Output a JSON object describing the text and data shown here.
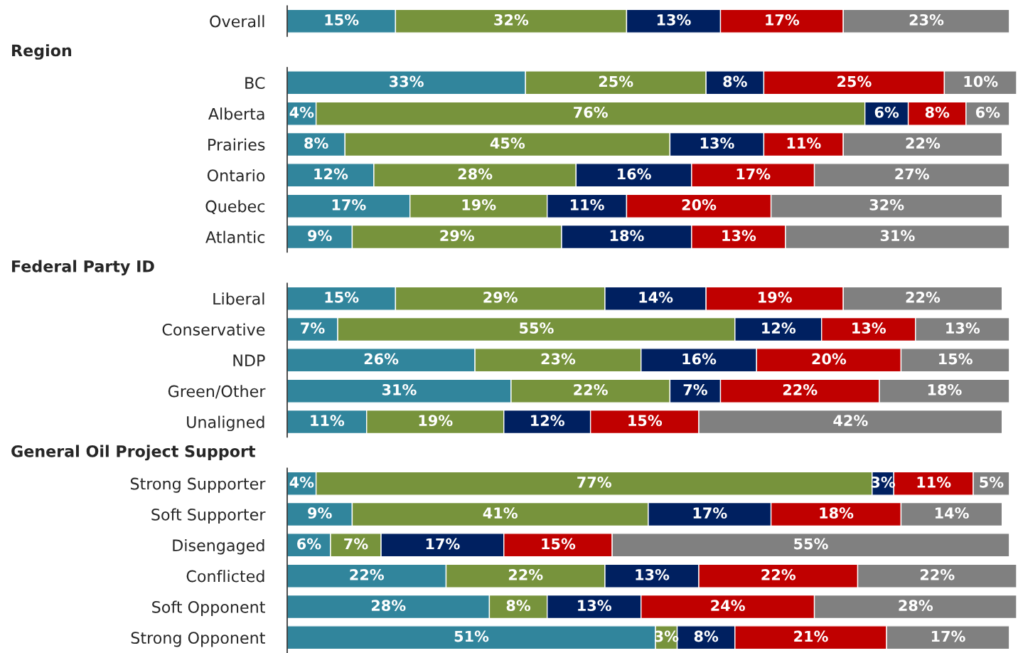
{
  "chart_data": {
    "type": "bar",
    "orientation": "horizontal",
    "stacked": true,
    "tick_labels": "y",
    "annotations": [
      "Region",
      "Federal Party ID",
      "General Oil Project Support"
    ],
    "categories": [
      "Overall",
      null,
      "BC",
      "Alberta",
      "Prairies",
      "Ontario",
      "Quebec",
      "Atlantic",
      null,
      "Liberal",
      "Conservative",
      "NDP",
      "Green/Other",
      "Unaligned",
      null,
      "Strong Supporter",
      "Soft Supporter",
      "Disengaged",
      "Conflicted",
      "Soft Opponent",
      "Strong Opponent"
    ],
    "series": [
      {
        "color": "#31859c",
        "values": [
          15,
          null,
          33,
          4,
          8,
          12,
          17,
          9,
          null,
          15,
          7,
          26,
          31,
          11,
          null,
          4,
          9,
          6,
          22,
          28,
          51
        ],
        "value_labels": [
          "15%",
          null,
          "33%",
          "4%",
          "8%",
          "12%",
          "17%",
          "9%",
          null,
          "15%",
          "7%",
          "26%",
          "31%",
          "11%",
          null,
          "4%",
          "9%",
          "6%",
          "22%",
          "28%",
          "51%"
        ]
      },
      {
        "color": "#77933c",
        "values": [
          32,
          null,
          25,
          76,
          45,
          28,
          19,
          29,
          null,
          29,
          55,
          23,
          22,
          19,
          null,
          77,
          41,
          7,
          22,
          8,
          3
        ],
        "value_labels": [
          "32%",
          null,
          "25%",
          "76%",
          "45%",
          "28%",
          "19%",
          "29%",
          null,
          "29%",
          "55%",
          "23%",
          "22%",
          "19%",
          null,
          "77%",
          "41%",
          "7%",
          "22%",
          "8%",
          "3%"
        ]
      },
      {
        "color": "#002060",
        "values": [
          13,
          null,
          8,
          6,
          13,
          16,
          11,
          18,
          null,
          14,
          12,
          16,
          7,
          12,
          null,
          3,
          17,
          17,
          13,
          13,
          8
        ],
        "value_labels": [
          "13%",
          null,
          "8%",
          "6%",
          "13%",
          "16%",
          "11%",
          "18%",
          null,
          "14%",
          "12%",
          "16%",
          "7%",
          "12%",
          null,
          "3%",
          "17%",
          "17%",
          "13%",
          "13%",
          "8%"
        ]
      },
      {
        "color": "#c00000",
        "values": [
          17,
          null,
          25,
          8,
          11,
          17,
          20,
          13,
          null,
          19,
          13,
          20,
          22,
          15,
          null,
          11,
          18,
          15,
          22,
          24,
          21
        ],
        "value_labels": [
          "17%",
          null,
          "25%",
          "8%",
          "11%",
          "17%",
          "20%",
          "13%",
          null,
          "19%",
          "13%",
          "20%",
          "22%",
          "15%",
          null,
          "11%",
          "18%",
          "15%",
          "22%",
          "24%",
          "21%"
        ]
      },
      {
        "color": "#808080",
        "values": [
          23,
          null,
          10,
          6,
          22,
          27,
          32,
          31,
          null,
          22,
          13,
          15,
          18,
          42,
          null,
          5,
          14,
          55,
          22,
          28,
          17
        ],
        "value_labels": [
          "23%",
          null,
          "10%",
          "6%",
          "22%",
          "27%",
          "32%",
          "31%",
          null,
          "22%",
          "13%",
          "15%",
          "18%",
          "42%",
          null,
          "5%",
          "14%",
          "55%",
          "22%",
          "28%",
          "17%"
        ]
      }
    ]
  }
}
